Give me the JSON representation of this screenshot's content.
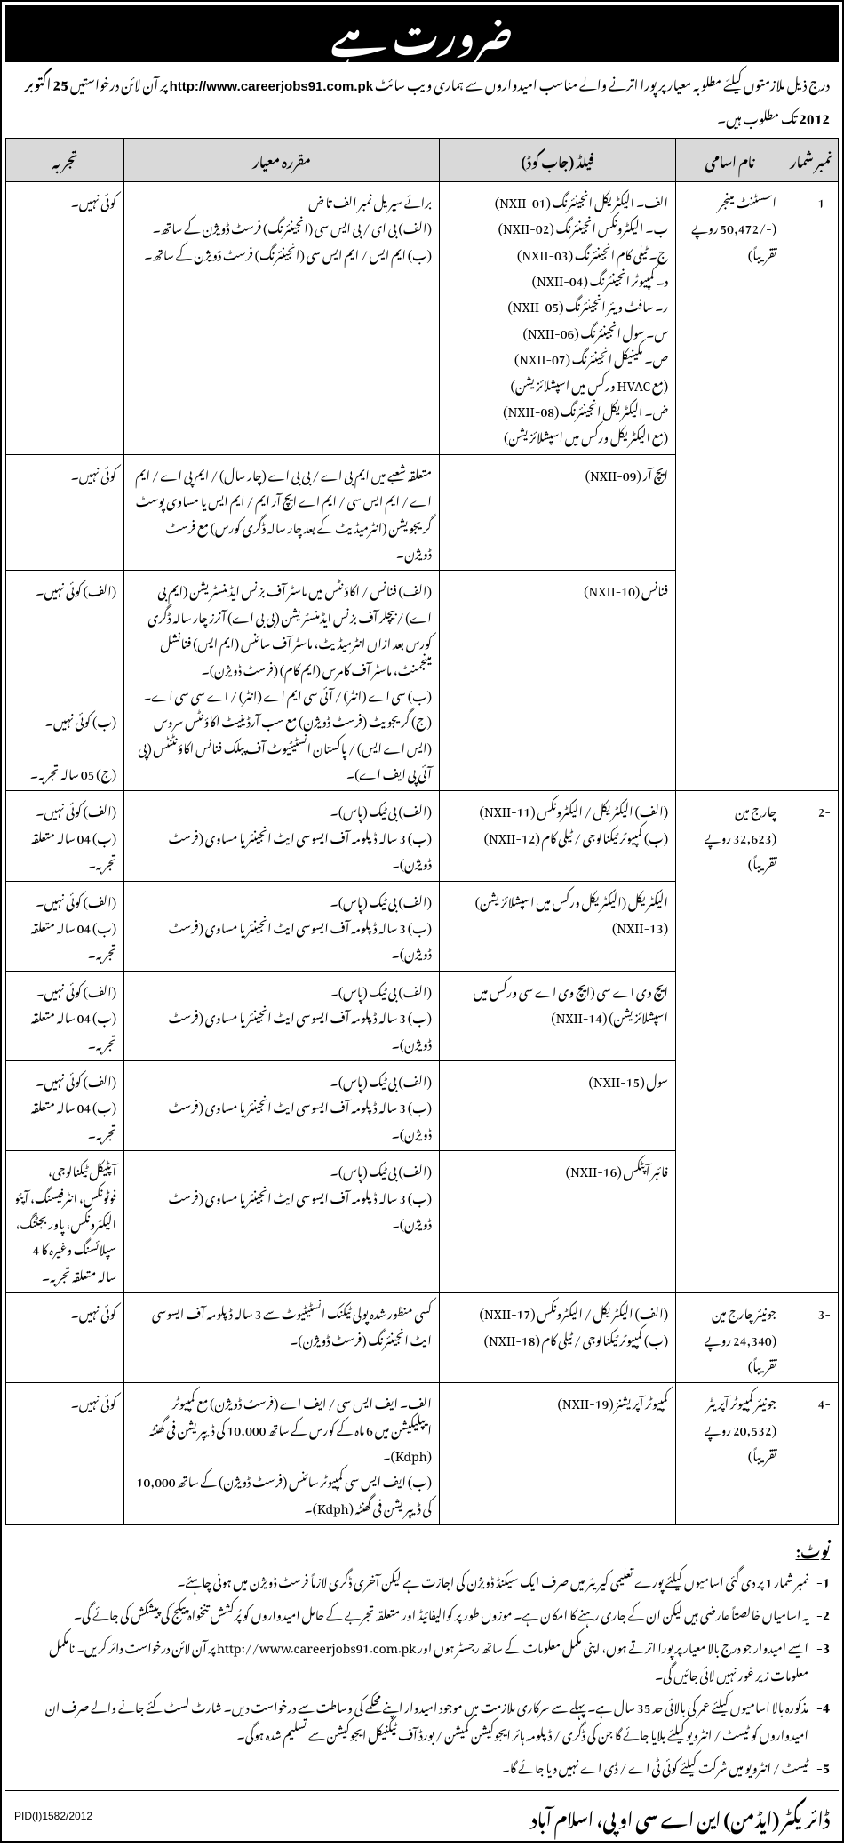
{
  "header": {
    "title": "ضرورت ہے"
  },
  "intro": {
    "text_before": "درج ذیل ملازمتوں کیلئے مطلوبہ معیار پر پورا اترنے والے مناسب امیدواروں سے ہماری ویب سائٹ ",
    "url": "http://www.careerjobs91.com.pk",
    "text_after": " پر آن لائن درخواستیں ",
    "deadline": "25 اکتوبر 2012",
    "text_end": " تک مطلوب ہیں۔"
  },
  "columns": {
    "sr": "نمبر شمار",
    "post": "نام اسامی",
    "field": "فیلڈ (جاب کوڈ)",
    "criteria": "مقررہ معیار",
    "exp": "تجربہ"
  },
  "rows": {
    "r1": {
      "sr": "-1",
      "post": "اسسٹنٹ مینجر\n(-/50,472 روپے تقریباً)",
      "sub": [
        {
          "field": "الف۔ الیکٹریکل انجینئرنگ (NXII-01)\nب۔ الیکٹرونکس انجینئرنگ (NXII-02)\nج۔ ٹیلی کام انجینئرنگ (NXII-03)\nد۔ کمپیوٹر انجینئرنگ (NXII-04)\nر۔ سافٹ ویئر انجینئرنگ (NXII-05)\nس۔ سول انجینئرنگ (NXII-06)\nص۔ مکینیکل انجینئرنگ (NXII-07)\n(مع HVAC ورکس میں اسپشلائزیشن)\nض۔ الیکٹریکل انجینئرنگ (NXII-08)\n(مع الیکٹریکل ورکس میں اسپشلائزیشن)",
          "criteria": "برائے سیریل نمبر الف تا ض\n(الف) بی ای / بی ایس سی (انجینئرنگ) فرسٹ ڈویژن کے ساتھ۔\n(ب) ایم ایس / ایم ایس سی (انجینئرنگ) فرسٹ ڈویژن کے ساتھ۔",
          "exp": "کوئی نہیں۔"
        },
        {
          "field": "ایچ آر (NXII-09)",
          "criteria": "متعلقہ شعبے میں ایم بی اے / بی بی اے (چار سال) / ایم پی اے / ایم اے / ایم ایس سی / ایم اے ایچ آر ایم / ایم ایس یا مساوی پوسٹ گریجویشن (انٹرمیڈیٹ کے بعد چار سالہ ڈگری کورس) مع فرسٹ ڈویژن۔",
          "exp": "کوئی نہیں۔"
        },
        {
          "field": "فنانس (NXII-10)",
          "criteria": "(الف) فنانس / اکاؤنٹس میں ماسٹر آف بزنس ایڈمنسٹریشن (ایم بی اے) / بیچلر آف بزنس ایڈمنسٹریشن (بی بی اے) آنرز چار سالہ ڈگری کورس بعد ازاں انٹرمیڈیٹ، ماسٹر آف سائنس (ایم ایس) فنانشل مینجمنٹ، ماسٹر آف کامرس (ایم کام) (فرسٹ ڈویژن)۔\n(ب) سی اے (انٹر) / آئی سی ایم اے (انٹر) / اے سی سی اے۔\n(ج) گریجویٹ (فرسٹ ڈویژن) مع سب آرڈینیٹ اکاؤنٹس سروس (ایس اے ایس) / پاکستان انسٹیٹیوٹ آف پبلک فنانس اکاؤنٹنٹس (پی آئی پی ایف اے)۔",
          "exp": "(الف) کوئی نہیں۔\n\n\n\n\n(ب) کوئی نہیں۔\n\n(ج) 05 سالہ تجربہ۔"
        }
      ]
    },
    "r2": {
      "sr": "-2",
      "post": "چارج مین\n(32,623 روپے تقریباً)",
      "sub": [
        {
          "field": "(الف) الیکٹریکل / الیکٹرونکس (NXII-11)\n(ب) کمپیوٹر ٹیکنالوجی / ٹیلی کام (NXII-12)",
          "criteria": "(الف) بی ٹیک (پاس)۔\n(ب) 3 سالہ ڈپلومہ آف ایسوسی ایٹ انجینئر یا مساوی (فرسٹ ڈویژن)۔",
          "exp": "(الف) کوئی نہیں۔\n(ب) 04 سالہ متعلقہ تجربہ۔"
        },
        {
          "field": "الیکٹریکل (الیکٹریکل ورکس میں اسپشلائزیشن) (NXII-13)",
          "criteria": "(الف) بی ٹیک (پاس)۔\n(ب) 3 سالہ ڈپلومہ آف ایسوسی ایٹ انجینئر یا مساوی (فرسٹ ڈویژن)۔",
          "exp": "(الف) کوئی نہیں۔\n(ب) 04 سالہ متعلقہ تجربہ۔"
        },
        {
          "field": "ایچ وی اے سی (ایچ وی اے سی ورکس میں اسپشلائزیشن) (NXII-14)",
          "criteria": "(الف) بی ٹیک (پاس)۔\n(ب) 3 سالہ ڈپلومہ آف ایسوسی ایٹ انجینئر یا مساوی (فرسٹ ڈویژن)۔",
          "exp": "(الف) کوئی نہیں۔\n(ب) 04 سالہ متعلقہ تجربہ۔"
        },
        {
          "field": "سول (NXII-15)",
          "criteria": "(الف) بی ٹیک (پاس)۔\n(ب) 3 سالہ ڈپلومہ آف ایسوسی ایٹ انجینئر یا مساوی (فرسٹ ڈویژن)۔",
          "exp": "(الف) کوئی نہیں۔\n(ب) 04 سالہ متعلقہ تجربہ۔"
        },
        {
          "field": "فائبر آپٹکس (NXII-16)",
          "criteria": "(الف) بی ٹیک (پاس)۔\n(ب) 3 سالہ ڈپلومہ آف ایسوسی ایٹ انجینئر یا مساوی (فرسٹ ڈویژن)۔",
          "exp": "آپٹیکل ٹیکنالوجی، فوٹونکس، انٹرفیسنگ، آپٹو الیکٹرونکس، پاور بجٹنگ، سپلائسنگ وغیرہ کا 4 سالہ متعلقہ تجربہ۔"
        }
      ]
    },
    "r3": {
      "sr": "-3",
      "post": "جونیئر چارج مین\n(24,340 روپے تقریباً)",
      "field": "(الف) الیکٹریکل / الیکٹرونکس (NXII-17)\n(ب) کمپیوٹر ٹیکنالوجی / ٹیلی کام (NXII-18)",
      "criteria": "کسی منظور شدہ پولی ٹیکنک انسٹیٹیوٹ سے 3 سالہ ڈپلومہ آف ایسوسی ایٹ انجینئرنگ (فرسٹ ڈویژن)۔",
      "exp": "کوئی نہیں۔"
    },
    "r4": {
      "sr": "-4",
      "post": "جونیئر کمپیوٹر آپریٹر\n(20,532 روپے تقریباً)",
      "field": "کمپیوٹر آپریشنز (NXII-19)",
      "criteria": "الف۔ ایف ایس سی / ایف اے (فرسٹ ڈویژن) مع کمپیوٹر ایپلیکیشن میں 6 ماہ کے کورس کے ساتھ 10,000 کی ڈیپریشن فی گھنٹہ (Kdph)۔\n(ب) ایف ایس سی کمپیوٹر سائنس (فرسٹ ڈویژن) کے ساتھ 10,000 کی ڈیپریشن فی گھنٹہ (Kdph)۔",
      "exp": "کوئی نہیں۔"
    }
  },
  "notes": {
    "title": "نوٹ:",
    "items": [
      "نمبر شمار 1 پر دی گئی اسامیوں کیلئے پورے تعلیمی کیریئر میں صرف ایک سیکنڈ ڈویژن کی اجازت ہے لیکن آخری ڈگری لازماً فرسٹ ڈویژن میں ہونی چاہئے۔",
      "یہ اسامیاں خالصتاً عارضی ہیں لیکن ان کے جاری رہنے کا امکان ہے۔ موزوں طور پر کوالیفائیڈ اور متعلقہ تجربے کے حامل امیدواروں کو پُرکشش تنخواہ پیکج کی پیشکش کی جائے گی۔",
      "ایسے امیدوار جو درج بالا معیار پر پورا اترتے ہوں، اپنی مکمل معلومات کے ساتھ رجسٹر ہوں اور http://www.careerjobs91.com.pk پر آن لائن درخواست دائر کریں۔ نامکمل معلومات زیر غور نہیں لائی جائیں گی۔",
      "مذکورہ بالا اسامیوں کیلئے عمر کی بالائی حد 35 سال ہے۔ پہلے سے سرکاری ملازمت میں موجود امیدوار اپنے محکمے کی وساطت سے درخواست دیں۔ شارٹ لسٹ کئے جانے والے صرف ان امیدواروں کو ٹیسٹ / انٹرویو کیلئے بلایا جائے گا جن کی ڈگری / ڈپلومہ ہائر ایجوکیشن کمیشن / بورڈ آف ٹیکنیکل ایجوکیشن سے تسلیم شدہ ہوگی۔",
      "ٹیسٹ / انٹرویو میں شرکت کیلئے کوئی ٹی اے / ڈی اے نہیں دیا جائے گا۔"
    ]
  },
  "footer": {
    "signature": "ڈائریکٹر (ایڈمن) این اے سی او پی، اسلام آباد",
    "pid": "PID(I)1582/2012"
  }
}
